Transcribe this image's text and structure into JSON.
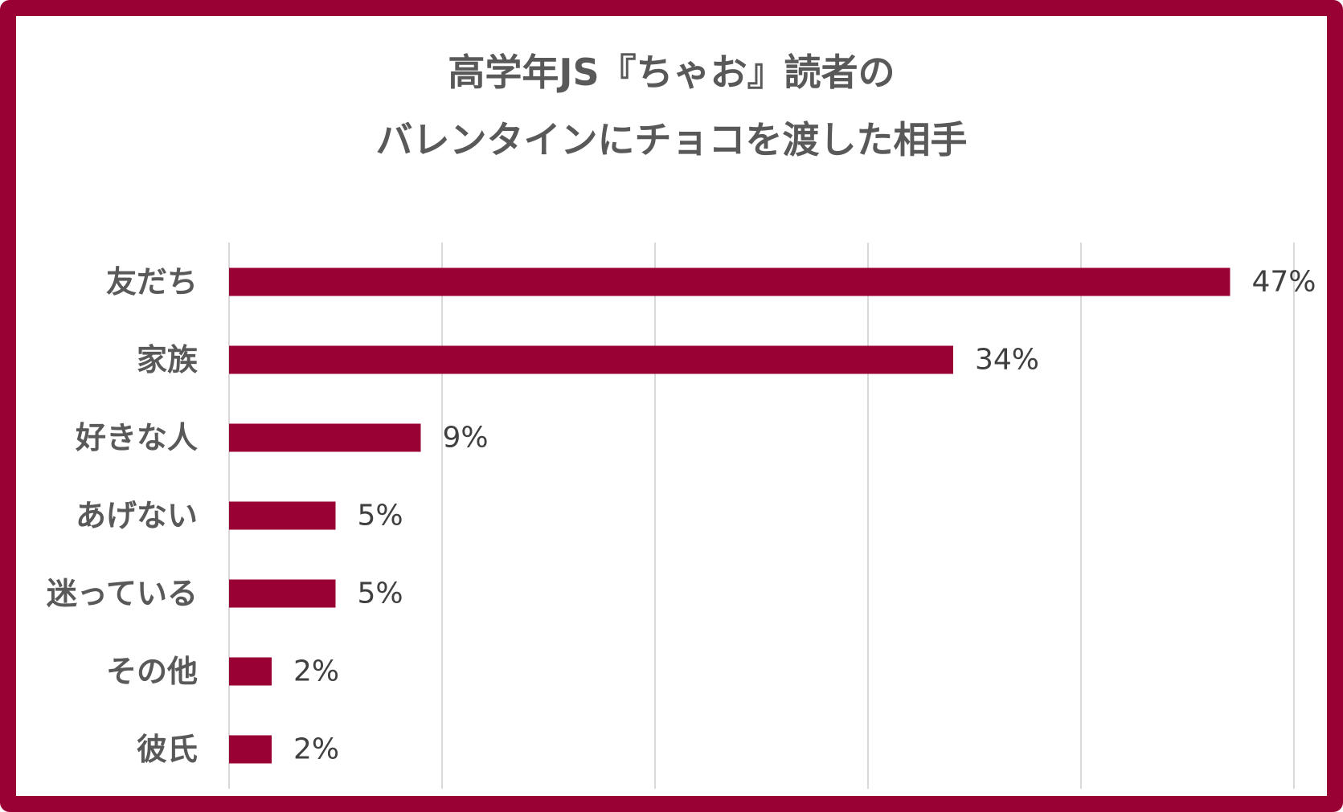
{
  "chart_data": {
    "type": "bar",
    "orientation": "horizontal",
    "title_lines": [
      "高学年JS『ちゃお』読者の",
      "バレンタインにチョコを渡した相手"
    ],
    "categories": [
      "友だち",
      "家族",
      "好きな人",
      "あげない",
      "迷っている",
      "その他",
      "彼氏"
    ],
    "values": [
      47,
      34,
      9,
      5,
      5,
      2,
      2
    ],
    "value_labels": [
      "47%",
      "34%",
      "9%",
      "5%",
      "5%",
      "2%",
      "2%"
    ],
    "xlim": [
      0,
      50
    ],
    "grid": true,
    "bar_color": "#990033"
  }
}
